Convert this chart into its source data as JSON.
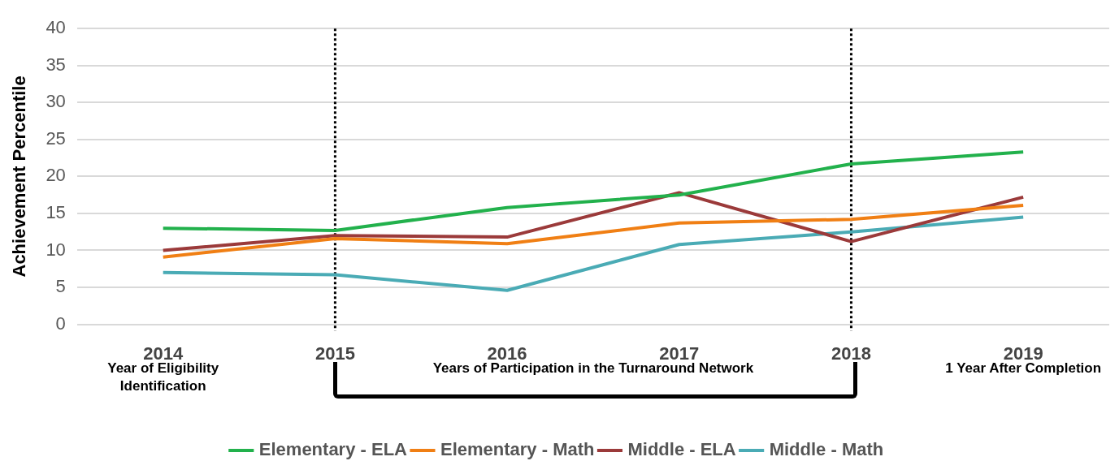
{
  "chart_data": {
    "type": "line",
    "ylabel": "Achievement Percentile",
    "categories": [
      "2014",
      "2015",
      "2016",
      "2017",
      "2018",
      "2019"
    ],
    "series": [
      {
        "name": "Elementary - ELA",
        "color": "#22b14c",
        "values": [
          13.0,
          12.7,
          15.8,
          17.5,
          21.7,
          23.3
        ]
      },
      {
        "name": "Elementary - Math",
        "color": "#f07f14",
        "values": [
          9.1,
          11.6,
          10.9,
          13.7,
          14.2,
          16.1
        ]
      },
      {
        "name": "Middle - ELA",
        "color": "#9b3a3a",
        "values": [
          10.0,
          12.0,
          11.8,
          17.8,
          11.2,
          17.2
        ]
      },
      {
        "name": "Middle - Math",
        "color": "#4aabb5",
        "values": [
          7.0,
          6.7,
          4.6,
          10.8,
          12.5,
          14.5
        ]
      }
    ],
    "ylim": [
      0,
      40
    ],
    "yticks": [
      0,
      5,
      10,
      15,
      20,
      25,
      30,
      35,
      40
    ],
    "grid": "y",
    "legend": "bottom",
    "marker": "none",
    "line_style": "solid",
    "ref_lines": [
      {
        "axis": "x",
        "value": "2015",
        "color": "#000000",
        "line_style": "dotted"
      },
      {
        "axis": "x",
        "value": "2018",
        "color": "#000000",
        "line_style": "dotted"
      }
    ],
    "annotations": [
      "Year of Eligibility Identification",
      "Years of Participation in the Turnaround Network",
      "1 Year After Completion"
    ]
  }
}
